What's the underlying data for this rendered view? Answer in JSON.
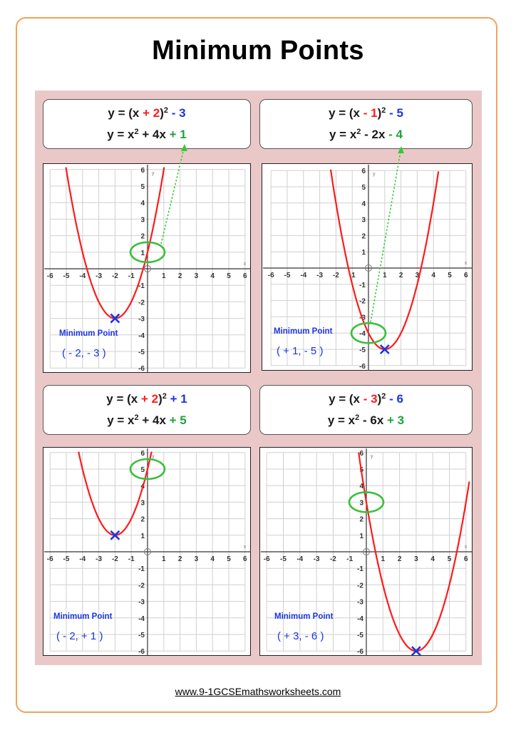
{
  "title": "Minimum Points",
  "footer": "www.9-1GCSEmathsworksheets.com",
  "colors": {
    "curve": "#ff1a1a",
    "marker": "#1a35e0",
    "circle": "#3cbf3c",
    "arrow": "#33cc33",
    "grid": "#d0d0d0",
    "panel": "#ebc8c8",
    "frame": "#f0a35a"
  },
  "examples": [
    {
      "line1": {
        "a": "y = (x",
        "b": " + 2",
        "c": ")",
        "d": "2",
        "e": " - 3"
      },
      "line2": {
        "a": "y = x",
        "b": "2",
        "c": " + 4x",
        "d": " + 1"
      },
      "min_label": "Minimum Point",
      "min_coords": "( - 2, - 3 )"
    },
    {
      "line1": {
        "a": "y = (x",
        "b": " - 1",
        "c": ")",
        "d": "2",
        "e": " - 5"
      },
      "line2": {
        "a": "y = x",
        "b": "2",
        "c": " - 2x",
        "d": " - 4"
      },
      "min_label": "Minimum Point",
      "min_coords": "( + 1, - 5 )"
    },
    {
      "line1": {
        "a": "y = (x",
        "b": " + 2",
        "c": ")",
        "d": "2",
        "e": " + 1"
      },
      "line2": {
        "a": "y = x",
        "b": "2",
        "c": " + 4x",
        "d": " + 5"
      },
      "min_label": "Minimum Point",
      "min_coords": "( - 2, + 1 )"
    },
    {
      "line1": {
        "a": "y = (x",
        "b": " - 3",
        "c": ")",
        "d": "2",
        "e": " - 6"
      },
      "line2": {
        "a": "y = x",
        "b": "2",
        "c": " - 6x",
        "d": " + 3"
      },
      "min_label": "Minimum Point",
      "min_coords": "( + 3, - 6 )"
    }
  ],
  "chart_data": [
    {
      "type": "line",
      "function": "y = (x + 2)^2 - 3",
      "h": -2,
      "k": -3,
      "x_range": [
        -6,
        6
      ],
      "y_range": [
        -6,
        6
      ],
      "x_ticks": [
        "-6",
        "-5",
        "-4",
        "-3",
        "-2",
        "-1",
        "1",
        "2",
        "3",
        "4",
        "5",
        "6"
      ],
      "y_ticks": [
        "6",
        "5",
        "4",
        "3",
        "2",
        "1",
        "-1",
        "-2",
        "-3",
        "-4",
        "-5",
        "-6"
      ],
      "xlabel": "x",
      "ylabel": "y",
      "minimum": [
        -2,
        -3
      ],
      "y_intercept": 1,
      "grid": true
    },
    {
      "type": "line",
      "function": "y = (x - 1)^2 - 5",
      "h": 1,
      "k": -5,
      "x_range": [
        -6,
        6
      ],
      "y_range": [
        -6,
        6
      ],
      "x_ticks": [
        "-6",
        "-5",
        "-4",
        "-3",
        "-2",
        "-1",
        "1",
        "2",
        "3",
        "4",
        "5",
        "6"
      ],
      "y_ticks": [
        "6",
        "5",
        "4",
        "3",
        "2",
        "1",
        "-1",
        "-2",
        "-3",
        "-4",
        "-5",
        "-6"
      ],
      "xlabel": "x",
      "ylabel": "y",
      "minimum": [
        1,
        -5
      ],
      "y_intercept": -4,
      "grid": true
    },
    {
      "type": "line",
      "function": "y = (x + 2)^2 + 1",
      "h": -2,
      "k": 1,
      "x_range": [
        -6,
        6
      ],
      "y_range": [
        -6,
        6
      ],
      "x_ticks": [
        "-6",
        "-5",
        "-4",
        "-3",
        "-2",
        "-1",
        "1",
        "2",
        "3",
        "4",
        "5",
        "6"
      ],
      "y_ticks": [
        "6",
        "5",
        "4",
        "3",
        "2",
        "1",
        "-1",
        "-2",
        "-3",
        "-4",
        "-5",
        "-6"
      ],
      "xlabel": "x",
      "ylabel": "y",
      "minimum": [
        -2,
        1
      ],
      "y_intercept": 5,
      "grid": true
    },
    {
      "type": "line",
      "function": "y = (x - 3)^2 - 6",
      "h": 3,
      "k": -6,
      "x_range": [
        -6,
        6
      ],
      "y_range": [
        -6,
        6
      ],
      "x_ticks": [
        "-6",
        "-5",
        "-4",
        "-3",
        "-2",
        "-1",
        "1",
        "2",
        "3",
        "4",
        "5",
        "6"
      ],
      "y_ticks": [
        "6",
        "5",
        "4",
        "3",
        "2",
        "1",
        "-1",
        "-2",
        "-3",
        "-4",
        "-5",
        "-6"
      ],
      "xlabel": "x",
      "ylabel": "y",
      "minimum": [
        3,
        -6
      ],
      "y_intercept": 3,
      "grid": true
    }
  ]
}
